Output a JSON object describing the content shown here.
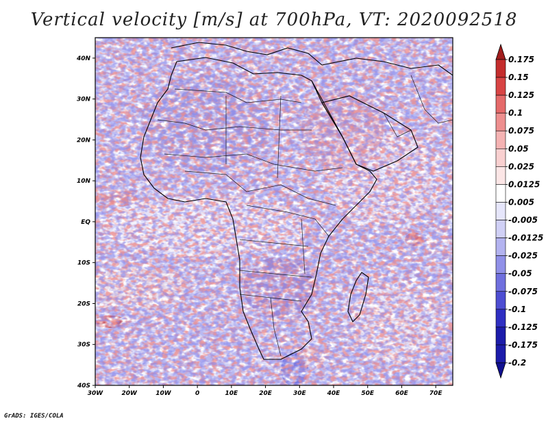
{
  "title": "Vertical velocity [m/s] at 700hPa, VT: 2020092518",
  "credit": "GrADS: IGES/COLA",
  "map": {
    "lon_range": [
      -30,
      75
    ],
    "lat_range": [
      -40,
      45
    ],
    "lat_ticks": [
      {
        "value": 40,
        "label": "40N"
      },
      {
        "value": 30,
        "label": "30N"
      },
      {
        "value": 20,
        "label": "20N"
      },
      {
        "value": 10,
        "label": "10N"
      },
      {
        "value": 0,
        "label": "EQ"
      },
      {
        "value": -10,
        "label": "10S"
      },
      {
        "value": -20,
        "label": "20S"
      },
      {
        "value": -30,
        "label": "30S"
      },
      {
        "value": -40,
        "label": "40S"
      }
    ],
    "lon_ticks": [
      {
        "value": -30,
        "label": "30W"
      },
      {
        "value": -20,
        "label": "20W"
      },
      {
        "value": -10,
        "label": "10W"
      },
      {
        "value": 0,
        "label": "0"
      },
      {
        "value": 10,
        "label": "10E"
      },
      {
        "value": 20,
        "label": "20E"
      },
      {
        "value": 30,
        "label": "30E"
      },
      {
        "value": 40,
        "label": "40E"
      },
      {
        "value": 50,
        "label": "50E"
      },
      {
        "value": 60,
        "label": "60E"
      },
      {
        "value": 70,
        "label": "70E"
      }
    ]
  },
  "colorbar": {
    "labels": [
      "0.175",
      "0.15",
      "0.125",
      "0.1",
      "0.075",
      "0.05",
      "0.025",
      "0.0125",
      "0.005",
      "-0.005",
      "-0.0125",
      "-0.025",
      "-0.05",
      "-0.075",
      "-0.1",
      "-0.125",
      "-0.175",
      "-0.2"
    ],
    "colors": [
      "#a11d1d",
      "#c42d2d",
      "#d84444",
      "#e56a6a",
      "#ee8f8f",
      "#f5b3b3",
      "#f9d0d0",
      "#fce6e6",
      "#ffffff",
      "#e6e6fb",
      "#d0d0f6",
      "#b3b3f0",
      "#9090e8",
      "#6f6fde",
      "#4d4dd2",
      "#2f2fc2",
      "#1c1caa",
      "#101090"
    ]
  }
}
